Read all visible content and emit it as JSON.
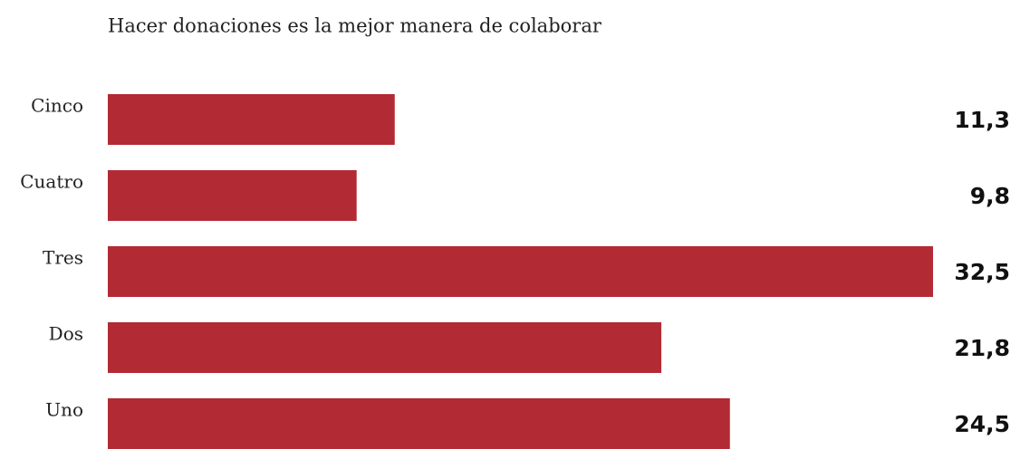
{
  "chart_data": {
    "type": "barh",
    "title": "Hacer donaciones es la mejor manera de colaborar",
    "categories": [
      "Cinco",
      "Cuatro",
      "Tres",
      "Dos",
      "Uno"
    ],
    "values": [
      11.3,
      9.8,
      32.5,
      21.8,
      24.5
    ],
    "value_labels": [
      "11,3",
      "9,8",
      "32,5",
      "21,8",
      "24,5"
    ],
    "color": "#b22a33"
  }
}
